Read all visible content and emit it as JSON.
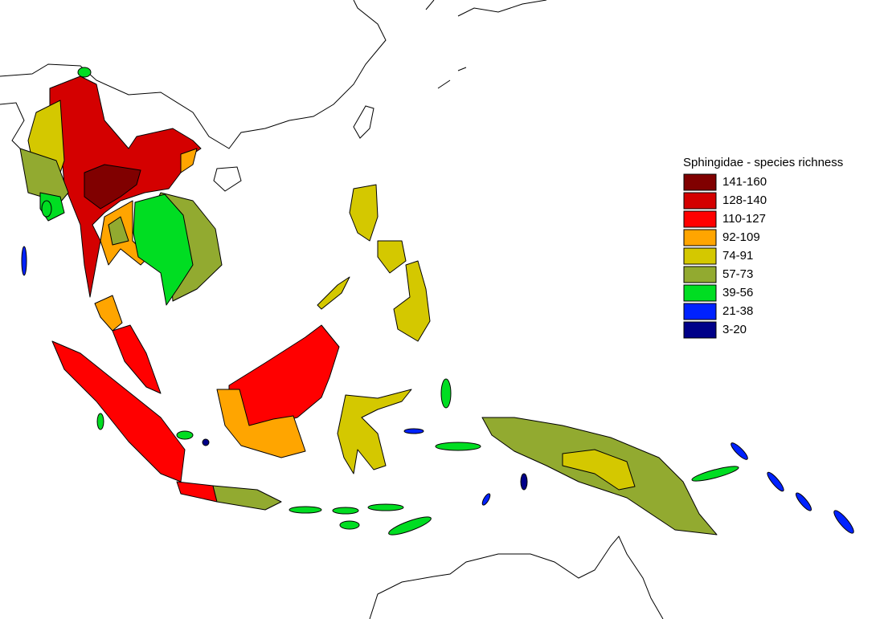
{
  "legend": {
    "title": "Sphingidae - species richness",
    "items": [
      {
        "label": "141-160",
        "color": "#800000"
      },
      {
        "label": "128-140",
        "color": "#d40000"
      },
      {
        "label": "110-127",
        "color": "#ff0000"
      },
      {
        "label": "92-109",
        "color": "#ffa500"
      },
      {
        "label": "74-91",
        "color": "#d4c800"
      },
      {
        "label": "57-73",
        "color": "#92aa30"
      },
      {
        "label": "39-56",
        "color": "#00dd22"
      },
      {
        "label": "21-38",
        "color": "#0022ff"
      },
      {
        "label": "3-20",
        "color": "#000088"
      }
    ]
  }
}
